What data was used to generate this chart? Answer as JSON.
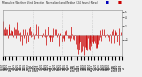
{
  "background_color": "#f0f0f0",
  "plot_bg_color": "#f0f0f0",
  "grid_color": "#aaaaaa",
  "bar_color": "#cc0000",
  "legend_blue_color": "#0000bb",
  "legend_red_color": "#cc0000",
  "ylim": [
    -4.5,
    5.5
  ],
  "ytick_values": [
    5,
    4,
    2,
    -1
  ],
  "num_points": 168,
  "seed": 7,
  "title_text": "Milwaukee Weather Wind Direction  Normalized and Median  (24 Hours) (New)",
  "title_fontsize": 2.0,
  "tick_fontsize": 1.8,
  "bar_linewidth": 0.5
}
